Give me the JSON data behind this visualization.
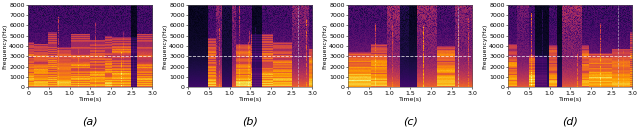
{
  "n_subplots": 4,
  "labels": [
    "(a)",
    "(b)",
    "(c)",
    "(d)"
  ],
  "xlabel": [
    "Time(s)",
    "Time(s)",
    "Time(s)",
    "Time(s)"
  ],
  "ylabel": "Frequency(Hz)",
  "yticks": [
    0,
    1000,
    2000,
    3000,
    4000,
    5000,
    6000,
    7000,
    8000
  ],
  "xticks": [
    0,
    0.5,
    1.0,
    1.5,
    2.0,
    2.5,
    3.0
  ],
  "xlim": [
    0.0,
    3.0
  ],
  "ylim": [
    0,
    8000
  ],
  "hline_y": 3000,
  "hline_color": "#ffffff",
  "hline_style": "dashed",
  "hline_lw": 0.6,
  "hline_alpha": 0.8,
  "vline_color": "#dddddd",
  "vline_style": "dashed",
  "vline_lw": 0.5,
  "vline_alpha": 0.7,
  "vline_x": [
    2.65,
    2.65,
    2.65
  ],
  "label_fontsize": 8,
  "tick_fontsize": 4.5,
  "ylabel_fontsize": 4.5,
  "xlabel_fontsize": 4.5,
  "figsize": [
    6.4,
    1.37
  ],
  "dpi": 100,
  "seed": 12345
}
